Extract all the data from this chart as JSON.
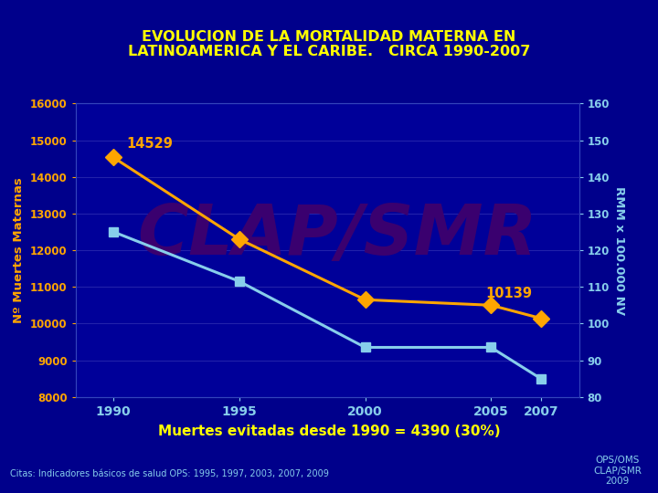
{
  "title_line1": "EVOLUCION DE LA MORTALIDAD MATERNA EN",
  "title_line2": "LATINOAMERICA Y EL CARIBE.   CIRCA 1990-2007",
  "title_color": "#FFFF00",
  "background_color": "#00008B",
  "plot_bg_color": "#000099",
  "years": [
    1990,
    1995,
    2000,
    2005,
    2007
  ],
  "orange_line": [
    14529,
    12300,
    10650,
    10500,
    10139
  ],
  "white_line": [
    12500,
    11150,
    9350,
    9350,
    8490
  ],
  "orange_color": "#FFA500",
  "white_color": "#87CEEB",
  "ylim_left": [
    8000,
    16000
  ],
  "ylim_right": [
    80,
    160
  ],
  "yticks_left": [
    8000,
    9000,
    10000,
    11000,
    12000,
    13000,
    14000,
    15000,
    16000
  ],
  "yticks_right": [
    80,
    90,
    100,
    110,
    120,
    130,
    140,
    150,
    160
  ],
  "ylabel_left": "Nº Muertes Maternas",
  "ylabel_right": "RMM x 100.000 NV",
  "xlabel_years": [
    1990,
    1995,
    2000,
    2005,
    2007
  ],
  "watermark": "CLAP/SMR",
  "watermark_color": "#3A006F",
  "label_14529": "14529",
  "label_10139": "10139",
  "subtitle": "Muertes evitadas desde 1990 = 4390 (30%)",
  "subtitle_color": "#FFFF00",
  "footnote": "Citas: Indicadores básicos de salud OPS: 1995, 1997, 2003, 2007, 2009",
  "footnote_color": "#87CEEB",
  "source_label": "OPS/OMS\nCLAP/SMR\n2009",
  "source_color": "#87CEEB",
  "grid_color": "#2222AA",
  "tick_color": "#87CEEB",
  "marker_size": 9,
  "xlim": [
    1988.5,
    2008.5
  ]
}
